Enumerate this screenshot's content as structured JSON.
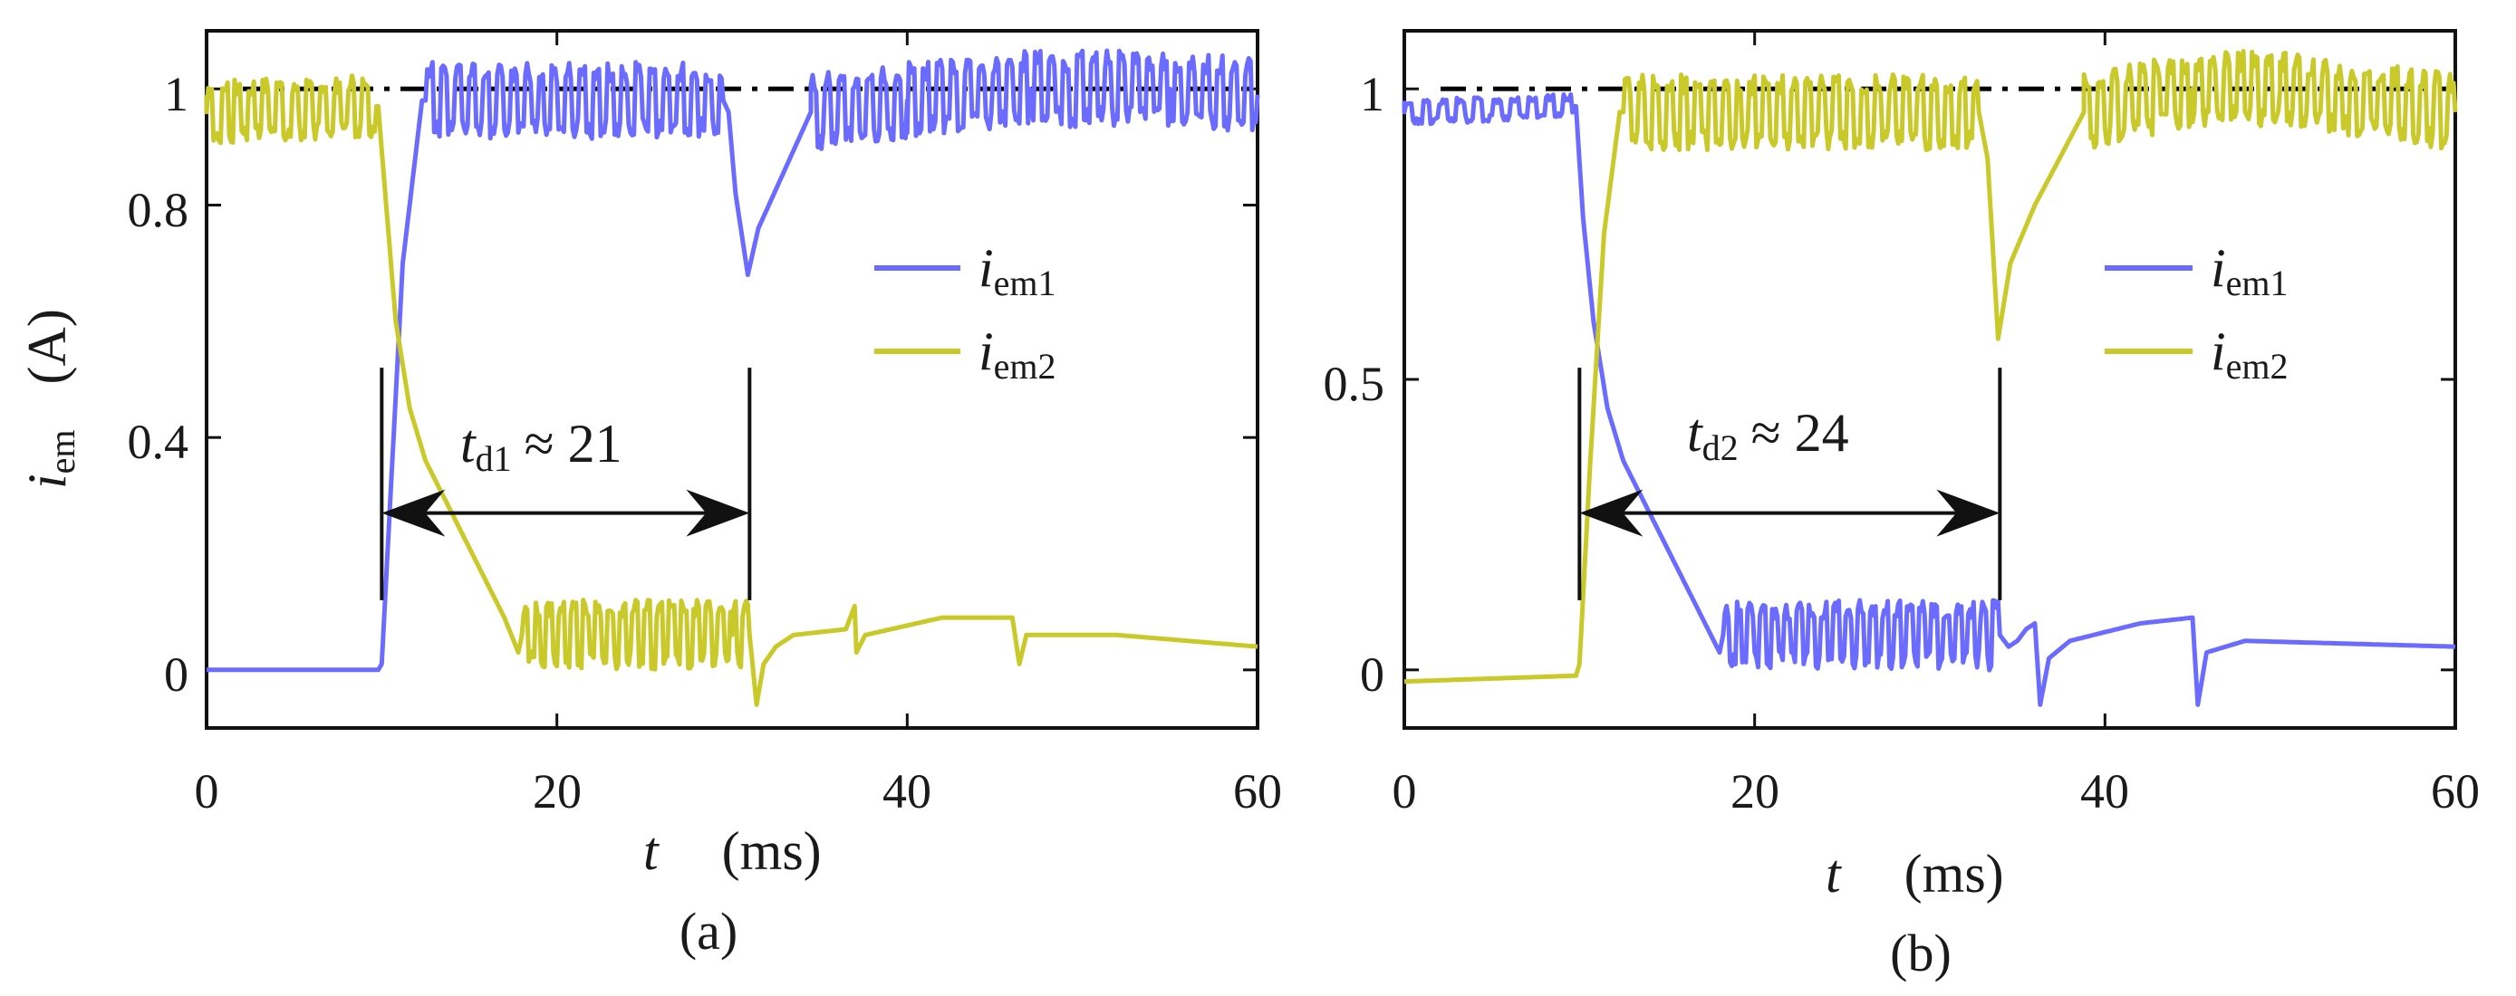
{
  "figure": {
    "panel_a_label": "(a)",
    "panel_b_label": "(b)"
  },
  "colors": {
    "i_em1": "#6b6cff",
    "i_em2": "#c9c92a",
    "reference": "#000000"
  },
  "chart_data": [
    {
      "type": "line",
      "panel": "(a)",
      "xlabel": {
        "symbol": "t",
        "unit": "(ms)"
      },
      "ylabel": {
        "symbol": "i",
        "subscript": "em",
        "unit": "(A)"
      },
      "xlim": [
        0,
        60
      ],
      "ylim": [
        -0.1,
        1.1
      ],
      "xticks": [
        0,
        20,
        40,
        60
      ],
      "xtick_labels": [
        "0",
        "20",
        "40",
        "60"
      ],
      "yticks": [
        0,
        0.4,
        0.8,
        1
      ],
      "ytick_labels": [
        "0",
        "0.4",
        "0.8",
        "1"
      ],
      "reference_line": {
        "y": 1,
        "style": "dash-dot"
      },
      "legend": {
        "position": "right",
        "entries": [
          {
            "symbol": "i",
            "subscript": "em1",
            "color_key": "i_em1"
          },
          {
            "symbol": "i",
            "subscript": "em2",
            "color_key": "i_em2"
          }
        ]
      },
      "annotation": {
        "symbol": "t",
        "subscript": "d1",
        "text": "≈ 21",
        "x_start": 10,
        "x_end": 31
      },
      "series": [
        {
          "name": "i_em1",
          "color_key": "i_em1",
          "points": [
            [
              0,
              0
            ],
            [
              9.8,
              0
            ],
            [
              10,
              0.01
            ],
            [
              10.5,
              0.3
            ],
            [
              11.2,
              0.7
            ],
            [
              12.3,
              0.98
            ],
            [
              29.5,
              0.98
            ],
            [
              29.8,
              0.96
            ],
            [
              30.2,
              0.82
            ],
            [
              30.9,
              0.68
            ],
            [
              31.5,
              0.76
            ],
            [
              33,
              0.86
            ],
            [
              34.5,
              0.96
            ],
            [
              40,
              0.98
            ],
            [
              47,
              1.0
            ],
            [
              55,
              1.0
            ],
            [
              60,
              0.99
            ]
          ],
          "noise": [
            {
              "from": 12.5,
              "to": 29.5,
              "amp": 0.06,
              "step": 0.4
            },
            {
              "from": 34.5,
              "to": 60,
              "amp": 0.06,
              "step": 0.4
            }
          ]
        },
        {
          "name": "i_em2",
          "color_key": "i_em2",
          "points": [
            [
              0,
              0.96
            ],
            [
              9.8,
              0.97
            ],
            [
              10.2,
              0.82
            ],
            [
              10.8,
              0.6
            ],
            [
              11.6,
              0.45
            ],
            [
              12.5,
              0.36
            ],
            [
              14,
              0.27
            ],
            [
              15.5,
              0.18
            ],
            [
              17,
              0.09
            ],
            [
              17.8,
              0.03
            ],
            [
              18,
              0.06
            ],
            [
              30,
              0.06
            ],
            [
              31,
              0.06
            ],
            [
              31.4,
              -0.06
            ],
            [
              31.8,
              0.01
            ],
            [
              32.5,
              0.04
            ],
            [
              33.5,
              0.06
            ],
            [
              36.5,
              0.07
            ],
            [
              37,
              0.11
            ],
            [
              37.1,
              0.03
            ],
            [
              37.6,
              0.06
            ],
            [
              42,
              0.09
            ],
            [
              46,
              0.09
            ],
            [
              46.4,
              0.01
            ],
            [
              46.8,
              0.06
            ],
            [
              52,
              0.06
            ],
            [
              60,
              0.04
            ]
          ],
          "noise": [
            {
              "from": 0,
              "to": 9.6,
              "amp": 0.05,
              "step": 0.4
            },
            {
              "from": 18,
              "to": 31,
              "amp": 0.055,
              "step": 0.35
            }
          ]
        }
      ]
    },
    {
      "type": "line",
      "panel": "(b)",
      "xlabel": {
        "symbol": "t",
        "unit": "(ms)"
      },
      "ylabel": {
        "symbol": "",
        "subscript": "",
        "unit": ""
      },
      "xlim": [
        0,
        60
      ],
      "ylim": [
        -0.1,
        1.1
      ],
      "xticks": [
        0,
        20,
        40,
        60
      ],
      "xtick_labels": [
        "0",
        "20",
        "40",
        "60"
      ],
      "yticks": [
        0,
        0.5,
        1
      ],
      "ytick_labels": [
        "0",
        "0.5",
        "1"
      ],
      "reference_line": {
        "y": 1,
        "style": "dash-dot"
      },
      "legend": {
        "position": "right",
        "entries": [
          {
            "symbol": "i",
            "subscript": "em1",
            "color_key": "i_em1"
          },
          {
            "symbol": "i",
            "subscript": "em2",
            "color_key": "i_em2"
          }
        ]
      },
      "annotation": {
        "symbol": "t",
        "subscript": "d2",
        "text": "≈ 24",
        "x_start": 10,
        "x_end": 34
      },
      "series": [
        {
          "name": "i_em1",
          "color_key": "i_em1",
          "points": [
            [
              0,
              0.96
            ],
            [
              9.8,
              0.97
            ],
            [
              10.2,
              0.78
            ],
            [
              10.8,
              0.6
            ],
            [
              11.6,
              0.45
            ],
            [
              12.5,
              0.36
            ],
            [
              14,
              0.27
            ],
            [
              15.5,
              0.18
            ],
            [
              17,
              0.09
            ],
            [
              18,
              0.03
            ],
            [
              18.2,
              0.06
            ],
            [
              34,
              0.06
            ],
            [
              34.5,
              0.04
            ],
            [
              35,
              0.05
            ],
            [
              35.5,
              0.07
            ],
            [
              36,
              0.08
            ],
            [
              36.3,
              -0.06
            ],
            [
              36.8,
              0.02
            ],
            [
              38,
              0.05
            ],
            [
              42,
              0.08
            ],
            [
              45,
              0.09
            ],
            [
              45.3,
              -0.06
            ],
            [
              45.8,
              0.03
            ],
            [
              48,
              0.05
            ],
            [
              60,
              0.04
            ]
          ],
          "noise": [
            {
              "from": 0,
              "to": 9.6,
              "amp": 0.02,
              "step": 0.5
            },
            {
              "from": 18.2,
              "to": 34,
              "amp": 0.055,
              "step": 0.35
            }
          ]
        },
        {
          "name": "i_em2",
          "color_key": "i_em2",
          "points": [
            [
              0,
              -0.02
            ],
            [
              9.8,
              -0.01
            ],
            [
              10,
              0.01
            ],
            [
              10.6,
              0.35
            ],
            [
              11.4,
              0.75
            ],
            [
              12.3,
              0.96
            ],
            [
              32.8,
              0.96
            ],
            [
              33.3,
              0.88
            ],
            [
              33.9,
              0.57
            ],
            [
              34.6,
              0.7
            ],
            [
              36,
              0.8
            ],
            [
              38.8,
              0.96
            ],
            [
              45,
              1.0
            ],
            [
              50,
              1.0
            ],
            [
              60,
              0.96
            ]
          ],
          "noise": [
            {
              "from": 12.5,
              "to": 32.8,
              "amp": 0.06,
              "step": 0.4
            },
            {
              "from": 38.8,
              "to": 60,
              "amp": 0.06,
              "step": 0.4
            }
          ]
        }
      ]
    }
  ]
}
